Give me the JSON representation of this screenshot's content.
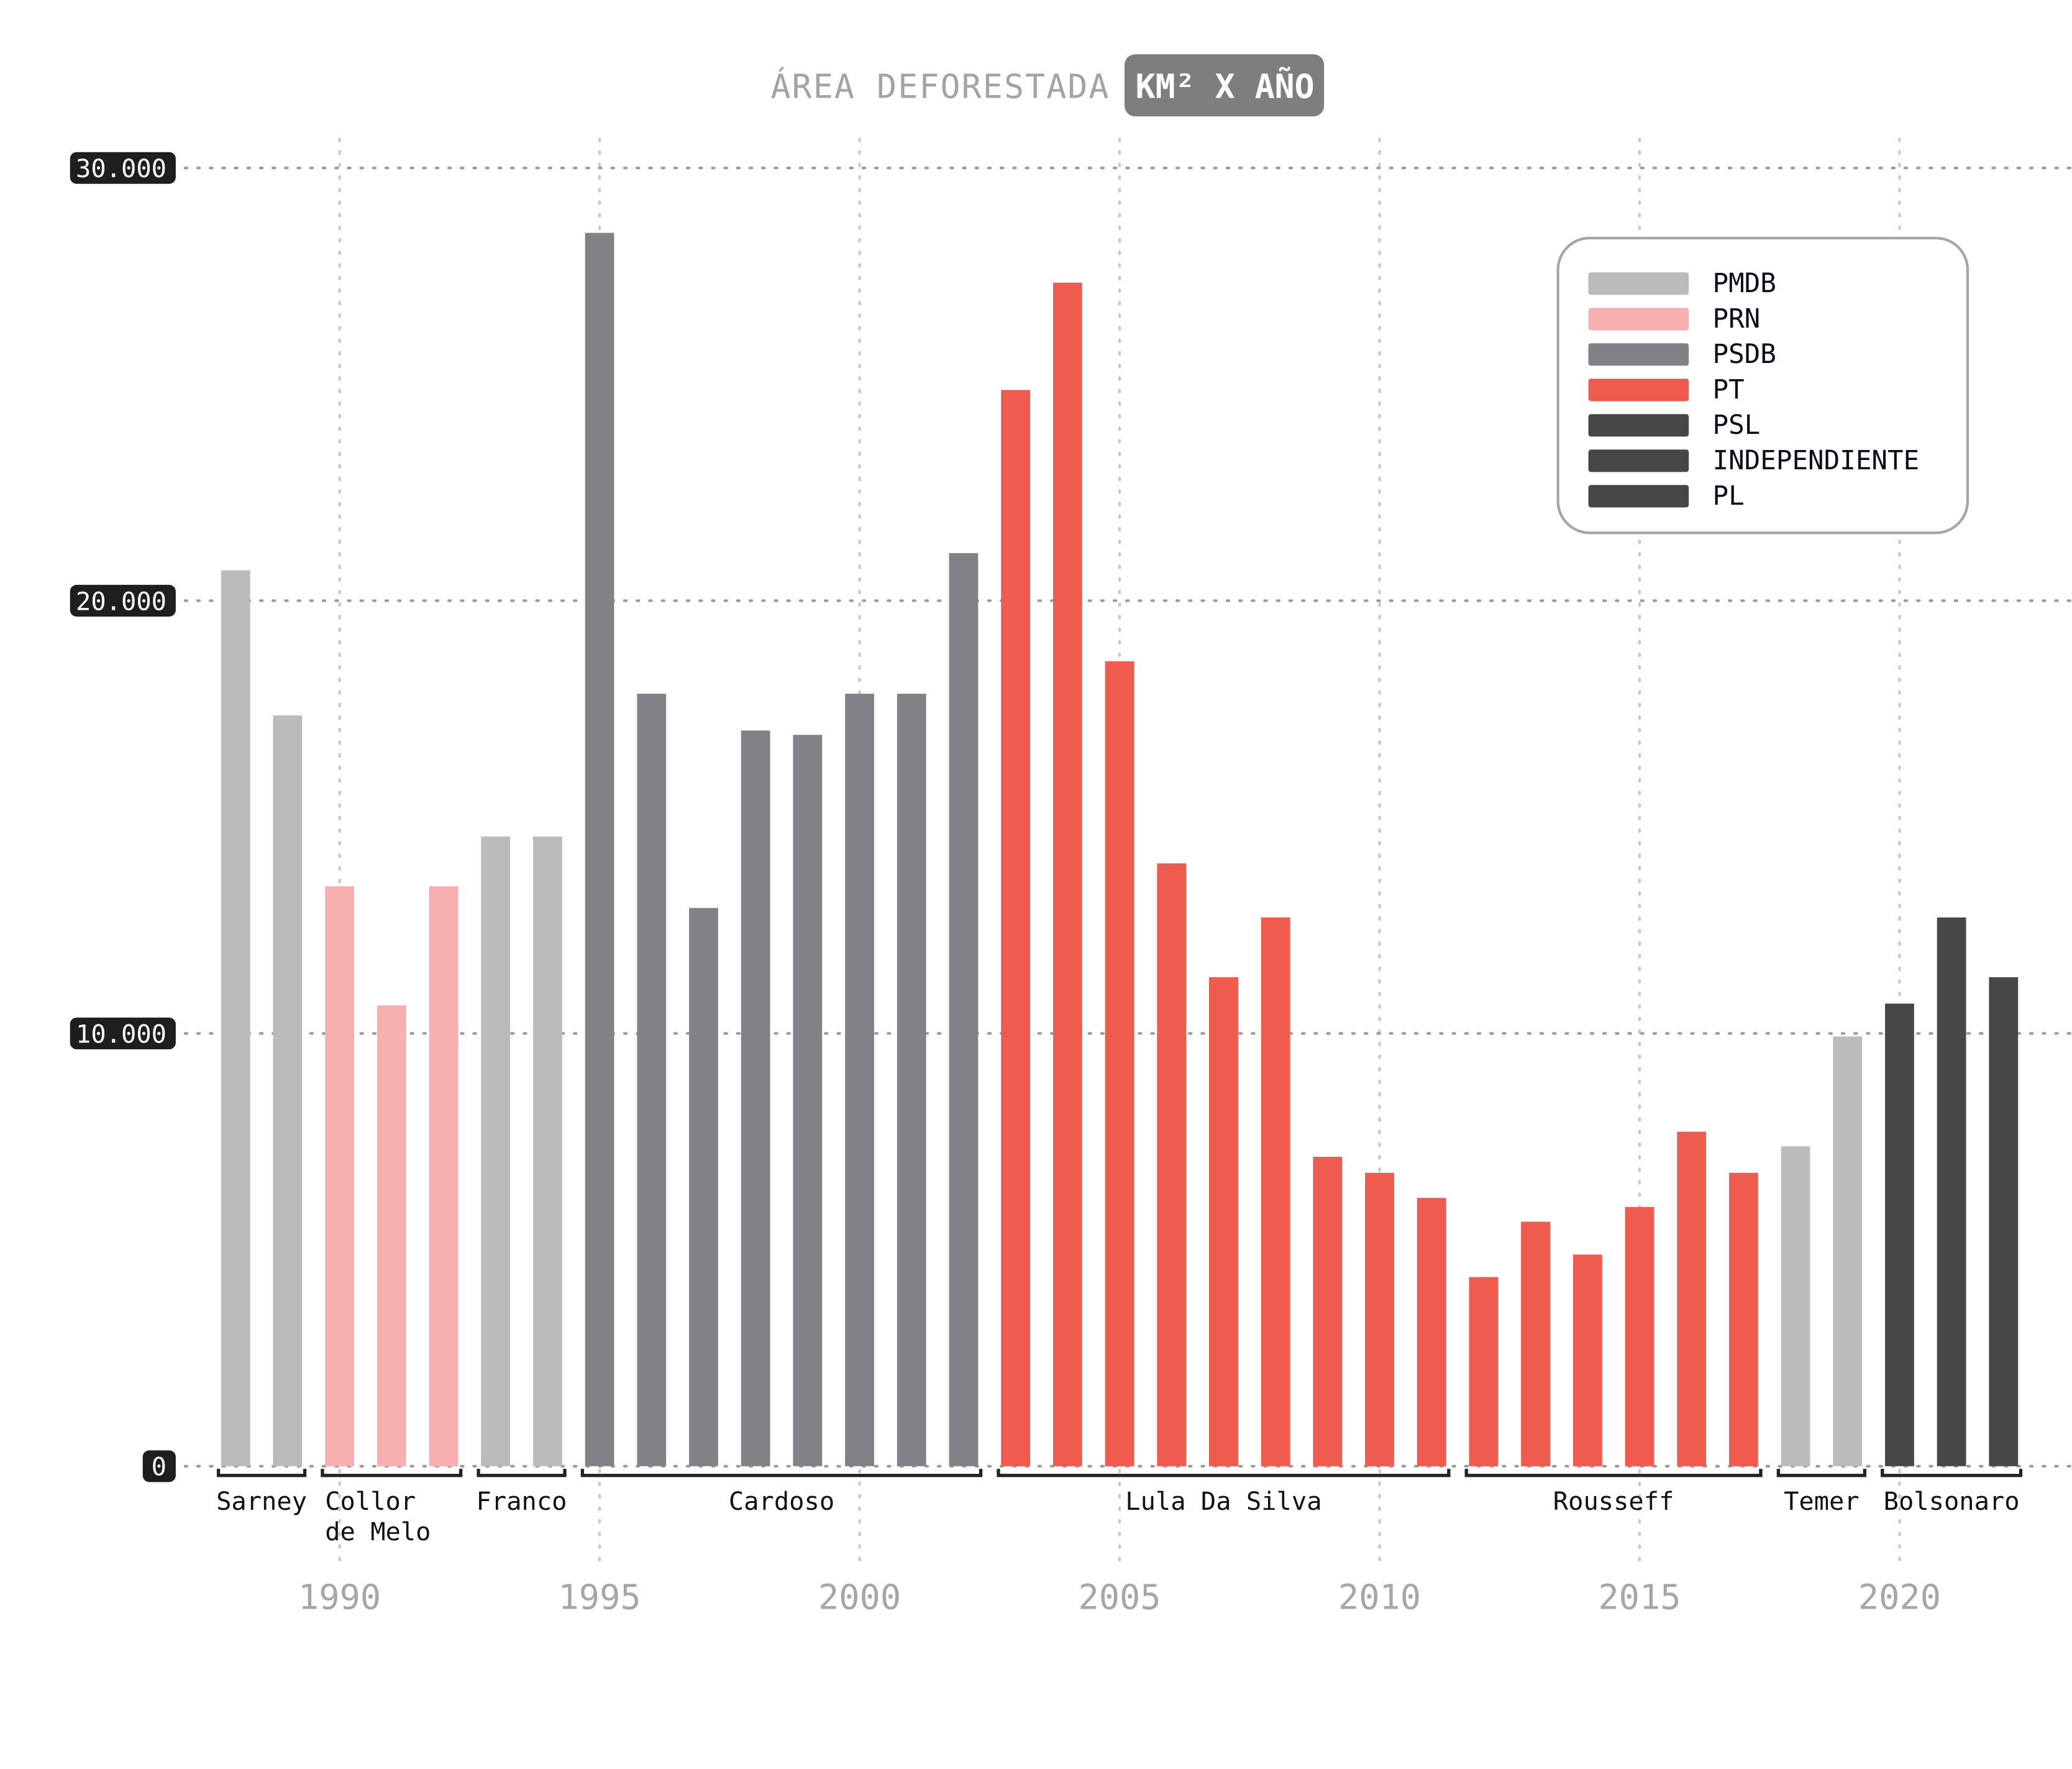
{
  "chart_data": {
    "type": "bar",
    "title": "ÁREA DEFORESTADA",
    "title_badge": "KM² X AÑO",
    "xlabel": "",
    "ylabel": "",
    "ylim": [
      0,
      30000
    ],
    "y_ticks": [
      {
        "value": 0,
        "label": "0"
      },
      {
        "value": 10000,
        "label": "10.000"
      },
      {
        "value": 20000,
        "label": "20.000"
      },
      {
        "value": 30000,
        "label": "30.000"
      }
    ],
    "x_ticks": [
      1990,
      1995,
      2000,
      2005,
      2010,
      2015,
      2020
    ],
    "grid": true,
    "legend_position": "top-right",
    "parties": [
      {
        "name": "PMDB",
        "color": "#bbbbbb"
      },
      {
        "name": "PRN",
        "color": "#f8afb0"
      },
      {
        "name": "PSDB",
        "color": "#828286"
      },
      {
        "name": "PT",
        "color": "#ef5b4f"
      },
      {
        "name": "PSL",
        "color": "#474747"
      },
      {
        "name": "INDEPENDIENTE",
        "color": "#474747"
      },
      {
        "name": "PL",
        "color": "#474747"
      }
    ],
    "bars": [
      {
        "year": 1988,
        "value": 20700,
        "party": "PMDB"
      },
      {
        "year": 1989,
        "value": 17350,
        "party": "PMDB"
      },
      {
        "year": 1990,
        "value": 13400,
        "party": "PRN"
      },
      {
        "year": 1991,
        "value": 10650,
        "party": "PRN"
      },
      {
        "year": 1992,
        "value": 13400,
        "party": "PRN"
      },
      {
        "year": 1993,
        "value": 14550,
        "party": "PMDB"
      },
      {
        "year": 1994,
        "value": 14550,
        "party": "PMDB"
      },
      {
        "year": 1995,
        "value": 28500,
        "party": "PSDB"
      },
      {
        "year": 1996,
        "value": 17850,
        "party": "PSDB"
      },
      {
        "year": 1997,
        "value": 12900,
        "party": "PSDB"
      },
      {
        "year": 1998,
        "value": 17000,
        "party": "PSDB"
      },
      {
        "year": 1999,
        "value": 16900,
        "party": "PSDB"
      },
      {
        "year": 2000,
        "value": 17850,
        "party": "PSDB"
      },
      {
        "year": 2001,
        "value": 17850,
        "party": "PSDB"
      },
      {
        "year": 2002,
        "value": 21100,
        "party": "PSDB"
      },
      {
        "year": 2003,
        "value": 24870,
        "party": "PT"
      },
      {
        "year": 2004,
        "value": 27350,
        "party": "PT"
      },
      {
        "year": 2005,
        "value": 18600,
        "party": "PT"
      },
      {
        "year": 2006,
        "value": 13930,
        "party": "PT"
      },
      {
        "year": 2007,
        "value": 11300,
        "party": "PT"
      },
      {
        "year": 2008,
        "value": 12680,
        "party": "PT"
      },
      {
        "year": 2009,
        "value": 7150,
        "party": "PT"
      },
      {
        "year": 2010,
        "value": 6780,
        "party": "PT"
      },
      {
        "year": 2011,
        "value": 6200,
        "party": "PT"
      },
      {
        "year": 2012,
        "value": 4370,
        "party": "PT"
      },
      {
        "year": 2013,
        "value": 5650,
        "party": "PT"
      },
      {
        "year": 2014,
        "value": 4890,
        "party": "PT"
      },
      {
        "year": 2015,
        "value": 5990,
        "party": "PT"
      },
      {
        "year": 2016,
        "value": 7730,
        "party": "PT"
      },
      {
        "year": 2017,
        "value": 6780,
        "party": "PT"
      },
      {
        "year": 2018,
        "value": 7390,
        "party": "PMDB"
      },
      {
        "year": 2019,
        "value": 9930,
        "party": "PMDB"
      },
      {
        "year": 2020,
        "value": 10690,
        "party": "PSL"
      },
      {
        "year": 2021,
        "value": 12680,
        "party": "INDEPENDIENTE"
      },
      {
        "year": 2022,
        "value": 11300,
        "party": "PL"
      }
    ],
    "presidents": [
      {
        "name": [
          "Sarney"
        ],
        "from": 1988,
        "to": 1989
      },
      {
        "name": [
          "Collor",
          "de Melo"
        ],
        "from": 1990,
        "to": 1992
      },
      {
        "name": [
          "Franco"
        ],
        "from": 1993,
        "to": 1994
      },
      {
        "name": [
          "Cardoso"
        ],
        "from": 1995,
        "to": 2002
      },
      {
        "name": [
          "Lula Da Silva"
        ],
        "from": 2003,
        "to": 2011
      },
      {
        "name": [
          "Rousseff"
        ],
        "from": 2012,
        "to": 2017
      },
      {
        "name": [
          "Temer"
        ],
        "from": 2018,
        "to": 2019
      },
      {
        "name": [
          "Bolsonaro"
        ],
        "from": 2020,
        "to": 2022
      }
    ]
  }
}
